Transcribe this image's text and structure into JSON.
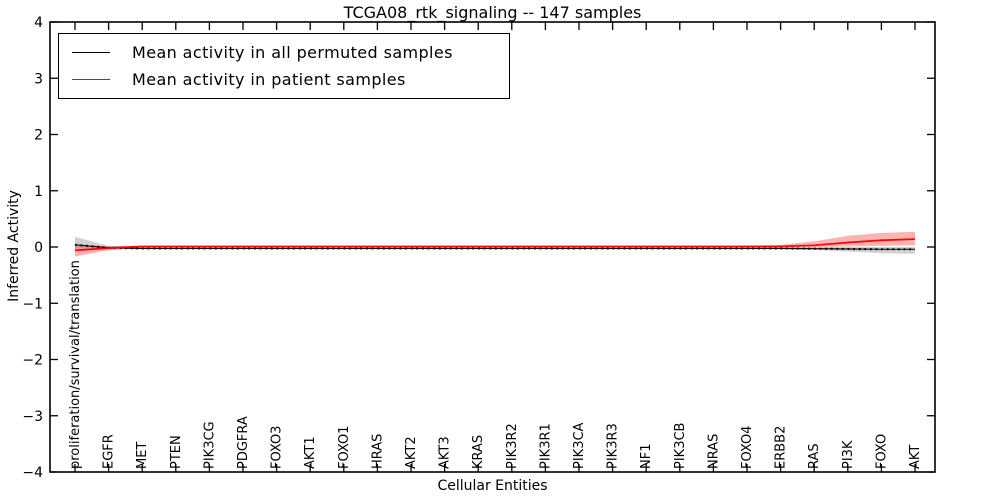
{
  "figure": {
    "title": "TCGA08_rtk_signaling -- 147 samples",
    "xlabel": "Cellular Entities",
    "ylabel": "Inferred Activity"
  },
  "legend": {
    "items": [
      {
        "label": "Mean activity in all permuted samples",
        "color": "#000000"
      },
      {
        "label": "Mean activity in patient samples",
        "color": "#ff0000"
      }
    ]
  },
  "chart_data": {
    "type": "line",
    "title": "TCGA08_rtk_signaling -- 147 samples",
    "xlabel": "Cellular Entities",
    "ylabel": "Inferred Activity",
    "ylim": [
      -4,
      4
    ],
    "ytick_values": [
      4,
      3,
      2,
      1,
      0,
      -1,
      -2,
      -3,
      -4
    ],
    "ytick_labels": [
      "4",
      "3",
      "2",
      "1",
      "0",
      "−1",
      "−2",
      "−3",
      "−4"
    ],
    "grid": false,
    "legend_position": "upper left",
    "categories": [
      "proliferation/survival/translation",
      "EGFR",
      "MET",
      "PTEN",
      "PIK3CG",
      "PDGFRA",
      "FOXO3",
      "AKT1",
      "FOXO1",
      "HRAS",
      "AKT2",
      "AKT3",
      "KRAS",
      "PIK3R2",
      "PIK3R1",
      "PIK3CA",
      "PIK3R3",
      "NF1",
      "PIK3CB",
      "NRAS",
      "FOXO4",
      "ERBB2",
      "RAS",
      "PI3K",
      "FOXO",
      "AKT"
    ],
    "series": [
      {
        "name": "Mean activity in all permuted samples",
        "color": "#000000",
        "line_style": "solid-with-dot-markers",
        "band_color": "rgba(0,0,0,0.18)",
        "values": [
          0.04,
          -0.015,
          -0.025,
          -0.025,
          -0.025,
          -0.025,
          -0.025,
          -0.025,
          -0.025,
          -0.025,
          -0.025,
          -0.025,
          -0.025,
          -0.025,
          -0.025,
          -0.025,
          -0.025,
          -0.025,
          -0.025,
          -0.025,
          -0.025,
          -0.025,
          -0.03,
          -0.035,
          -0.04,
          -0.04
        ],
        "band_upper": [
          0.18,
          0.02,
          0.0,
          0.0,
          0.0,
          0.0,
          0.0,
          0.0,
          0.0,
          0.0,
          0.0,
          0.0,
          0.0,
          0.0,
          0.0,
          0.0,
          0.0,
          0.0,
          0.0,
          0.0,
          0.0,
          0.0,
          0.0,
          0.0,
          0.0,
          0.0
        ],
        "band_lower": [
          -0.03,
          -0.04,
          -0.04,
          -0.04,
          -0.04,
          -0.04,
          -0.04,
          -0.04,
          -0.04,
          -0.04,
          -0.04,
          -0.04,
          -0.04,
          -0.04,
          -0.04,
          -0.04,
          -0.04,
          -0.04,
          -0.04,
          -0.04,
          -0.04,
          -0.04,
          -0.05,
          -0.08,
          -0.11,
          -0.12
        ]
      },
      {
        "name": "Mean activity in patient samples",
        "color": "#ff0000",
        "line_style": "solid",
        "band_color": "rgba(255,0,0,0.30)",
        "values": [
          -0.06,
          -0.02,
          0.01,
          0.01,
          0.01,
          0.01,
          0.01,
          0.01,
          0.01,
          0.01,
          0.01,
          0.01,
          0.01,
          0.01,
          0.01,
          0.01,
          0.01,
          0.01,
          0.01,
          0.01,
          0.01,
          0.01,
          0.03,
          0.08,
          0.12,
          0.14
        ],
        "band_upper": [
          0.03,
          0.015,
          0.025,
          0.025,
          0.025,
          0.025,
          0.025,
          0.025,
          0.025,
          0.025,
          0.025,
          0.025,
          0.025,
          0.025,
          0.025,
          0.025,
          0.025,
          0.025,
          0.025,
          0.025,
          0.025,
          0.04,
          0.1,
          0.2,
          0.25,
          0.27
        ],
        "band_lower": [
          -0.17,
          -0.055,
          -0.005,
          -0.005,
          -0.005,
          -0.005,
          -0.005,
          -0.005,
          -0.005,
          -0.005,
          -0.005,
          -0.005,
          -0.005,
          -0.005,
          -0.005,
          -0.005,
          -0.005,
          -0.005,
          -0.005,
          -0.005,
          -0.005,
          -0.005,
          0.0,
          0.01,
          0.02,
          0.03
        ]
      }
    ]
  }
}
